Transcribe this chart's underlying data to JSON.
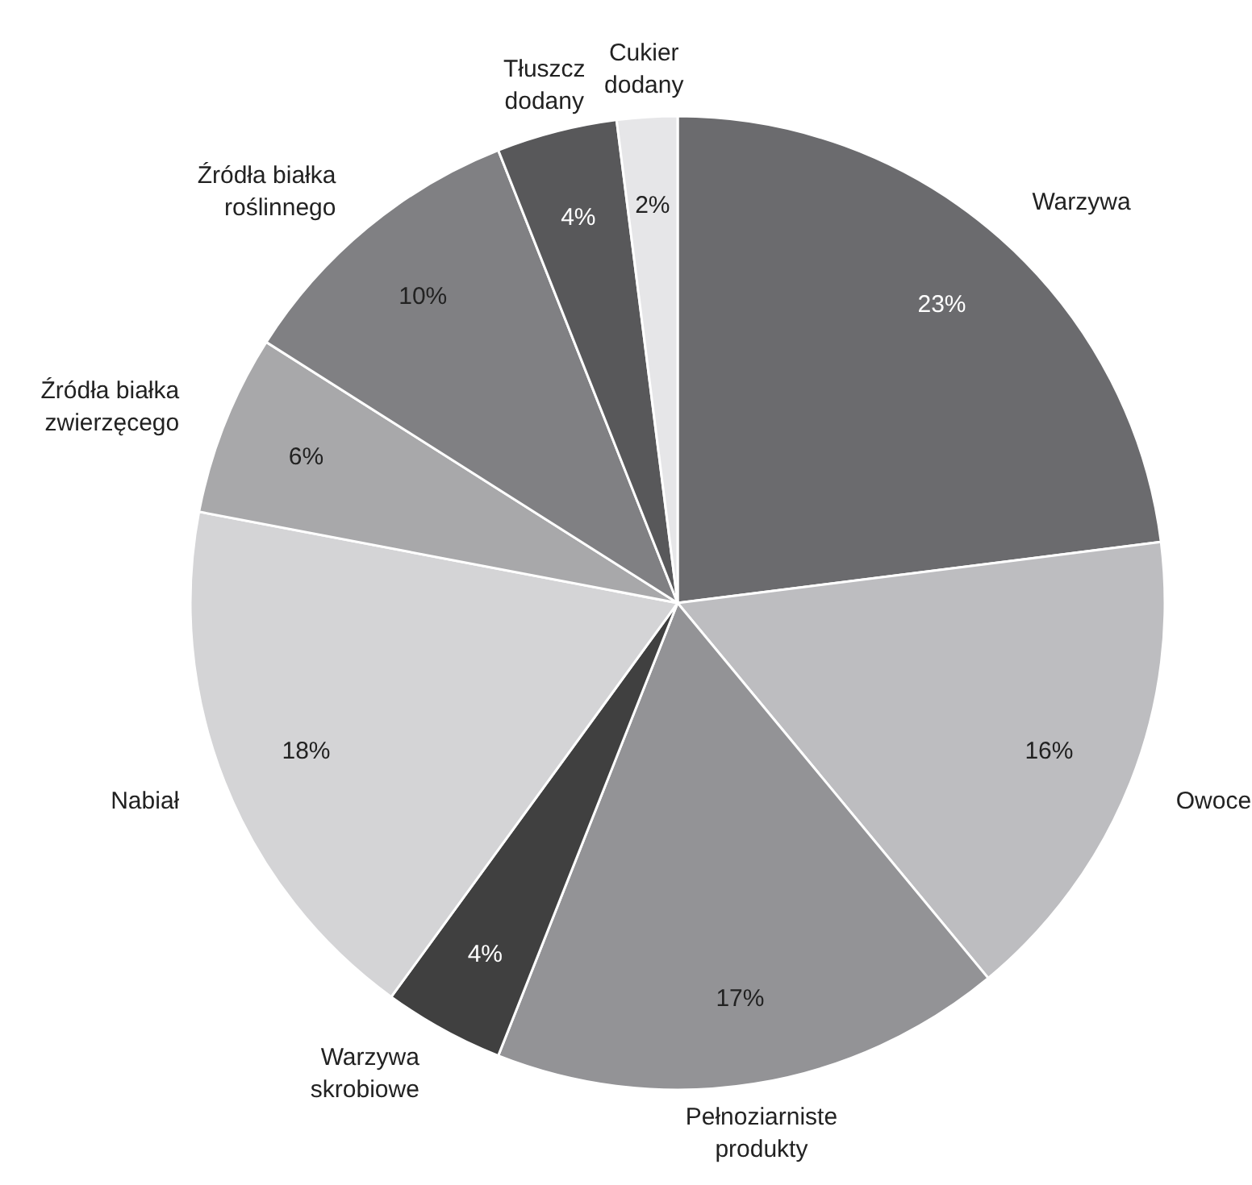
{
  "chart_data": {
    "type": "pie",
    "categories": [
      "Warzywa",
      "Owoce",
      "Pełnoziarniste\nprodukty",
      "Warzywa\nskrobiowe",
      "Nabiał",
      "Źródła białka\nzwierzęcego",
      "Źródła białka\nroślinnego",
      "Tłuszcz\ndodany",
      "Cukier\ndodany"
    ],
    "values": [
      23,
      16,
      17,
      4,
      18,
      6,
      10,
      4,
      2
    ],
    "value_labels": [
      "23%",
      "16%",
      "17%",
      "4%",
      "18%",
      "6%",
      "10%",
      "4%",
      "2%"
    ],
    "colors": [
      "#6b6b6e",
      "#bdbdc0",
      "#939396",
      "#404040",
      "#d4d4d6",
      "#a8a8aa",
      "#808083",
      "#58585a",
      "#e6e6e8"
    ]
  }
}
